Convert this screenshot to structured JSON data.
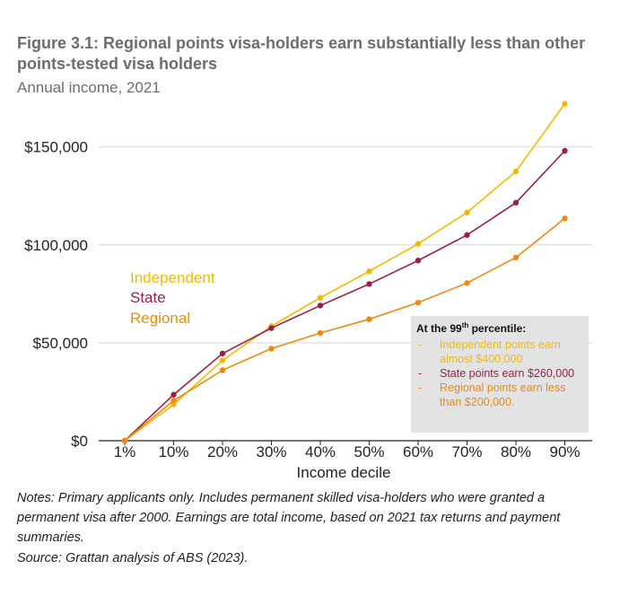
{
  "title": "Figure 3.1: Regional points visa-holders earn substantially less than other points-tested visa holders",
  "subtitle": "Annual income, 2021",
  "colors": {
    "independent": "#f5b800",
    "state": "#9a2049",
    "regional": "#ec8a10",
    "grid": "#d9d9d9",
    "axis": "#222222"
  },
  "chart_data": {
    "type": "line",
    "categories": [
      "1%",
      "10%",
      "20%",
      "30%",
      "40%",
      "50%",
      "60%",
      "70%",
      "80%",
      "90%"
    ],
    "xlabel": "Income decile",
    "ylabel": "",
    "ylim": [
      0,
      170000
    ],
    "yticks": [
      0,
      50000,
      100000,
      150000
    ],
    "ytick_labels": [
      "$0",
      "$50,000",
      "$100,000",
      "$150,000"
    ],
    "grid": "horizontal",
    "series": [
      {
        "name": "Independent",
        "color": "#f5b800",
        "values": [
          0,
          18500,
          41000,
          58500,
          73000,
          86500,
          100500,
          116500,
          137500,
          172000
        ]
      },
      {
        "name": "State",
        "color": "#9a2049",
        "values": [
          0,
          23500,
          44500,
          57500,
          69000,
          80000,
          92000,
          105000,
          121500,
          148000
        ]
      },
      {
        "name": "Regional",
        "color": "#ec8a10",
        "values": [
          0,
          20500,
          36000,
          47000,
          55000,
          62000,
          70500,
          80500,
          93500,
          113500
        ]
      }
    ],
    "legend_position": "left"
  },
  "callout": {
    "heading_prefix": "At the 99",
    "heading_sup": "th",
    "heading_suffix": " percentile:",
    "items": [
      {
        "bullet": "-",
        "text": "Independent points earn almost $400,000",
        "color": "#f5b800"
      },
      {
        "bullet": "-",
        "text": "State points earn $260,000",
        "color": "#9a2049"
      },
      {
        "bullet": "-",
        "text": "Regional points earn less than $200,000.",
        "color": "#ec8a10"
      }
    ]
  },
  "notes": "Notes: Primary applicants only. Includes permanent skilled visa-holders who were granted a permanent visa after 2000. Earnings are total income, based on 2021 tax returns and payment summaries.",
  "source": "Source: Grattan analysis of ABS (2023)."
}
